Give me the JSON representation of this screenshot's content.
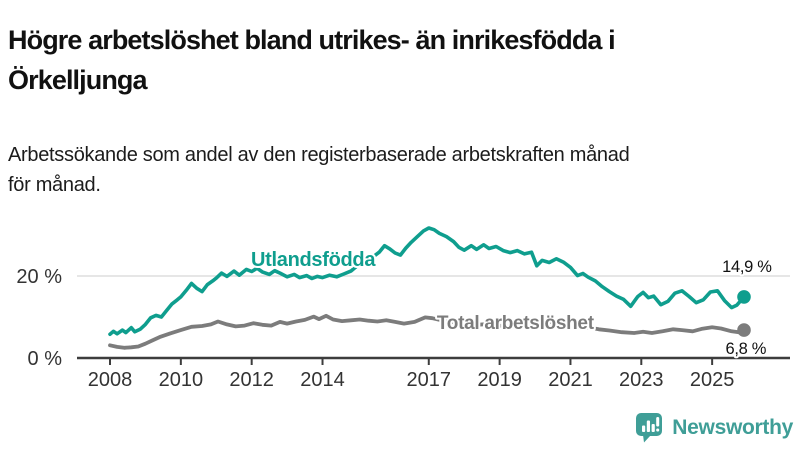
{
  "header": {
    "title_lines": [
      "Högre arbetslöshet bland utrikes- än inrikesfödda i",
      "Örkelljunga"
    ],
    "subtitle_lines": [
      "Arbetssökande som andel av den registerbaserade arbetskraften månad",
      "för månad."
    ]
  },
  "footer": {
    "brand": "Newsworthy",
    "logo_icon": "bar-chart-speech-bubble-icon"
  },
  "colors": {
    "accent_teal": "#0F9E8E",
    "line_gray": "#7C7C7C",
    "text_dark": "#111111",
    "axis_text": "#333333",
    "axis_line": "#3D3D3D",
    "gridline": "#D8D8D8",
    "logo_teal": "#3F9E97",
    "background": "#FFFFFF"
  },
  "chart_data": {
    "type": "line",
    "title": "",
    "xlabel": "",
    "ylabel": "",
    "y_unit": "%",
    "x_unit": "year (monthly observations)",
    "ylim": [
      0,
      36
    ],
    "xlim": [
      2007.9,
      2026.2
    ],
    "grid": "horizontal gridline at 20 % only",
    "legend_position": "labels drawn on lines",
    "x_ticks": [
      2008,
      2010,
      2012,
      2014,
      2017,
      2019,
      2021,
      2023,
      2025
    ],
    "y_ticks": [
      {
        "value": 0,
        "label": "0 %",
        "gridline": false
      },
      {
        "value": 20,
        "label": "20 %",
        "gridline": true
      }
    ],
    "series": [
      {
        "name": "Utlandsfödda",
        "color": "#0F9E8E",
        "stroke_width": 3.6,
        "end_value": 14.9,
        "end_label": "14,9 %",
        "points": [
          [
            2008.0,
            5.8
          ],
          [
            2008.1,
            6.5
          ],
          [
            2008.2,
            5.9
          ],
          [
            2008.35,
            6.8
          ],
          [
            2008.45,
            6.2
          ],
          [
            2008.6,
            7.4
          ],
          [
            2008.7,
            6.4
          ],
          [
            2008.85,
            7.0
          ],
          [
            2009.0,
            8.2
          ],
          [
            2009.15,
            9.8
          ],
          [
            2009.3,
            10.4
          ],
          [
            2009.45,
            10.0
          ],
          [
            2009.6,
            11.6
          ],
          [
            2009.75,
            13.2
          ],
          [
            2009.9,
            14.2
          ],
          [
            2010.0,
            14.9
          ],
          [
            2010.15,
            16.5
          ],
          [
            2010.3,
            18.2
          ],
          [
            2010.45,
            17.0
          ],
          [
            2010.6,
            16.2
          ],
          [
            2010.75,
            17.9
          ],
          [
            2010.9,
            18.8
          ],
          [
            2011.0,
            19.5
          ],
          [
            2011.15,
            20.7
          ],
          [
            2011.3,
            19.9
          ],
          [
            2011.5,
            21.2
          ],
          [
            2011.65,
            20.2
          ],
          [
            2011.85,
            21.6
          ],
          [
            2012.0,
            21.1
          ],
          [
            2012.15,
            21.9
          ],
          [
            2012.3,
            21.0
          ],
          [
            2012.5,
            20.4
          ],
          [
            2012.65,
            21.3
          ],
          [
            2012.8,
            20.7
          ],
          [
            2013.0,
            19.8
          ],
          [
            2013.2,
            20.4
          ],
          [
            2013.35,
            19.6
          ],
          [
            2013.55,
            20.1
          ],
          [
            2013.7,
            19.4
          ],
          [
            2013.85,
            19.9
          ],
          [
            2014.0,
            19.6
          ],
          [
            2014.2,
            20.2
          ],
          [
            2014.4,
            19.8
          ],
          [
            2014.6,
            20.5
          ],
          [
            2014.8,
            21.2
          ],
          [
            2015.0,
            22.6
          ],
          [
            2015.2,
            23.4
          ],
          [
            2015.4,
            24.5
          ],
          [
            2015.6,
            25.8
          ],
          [
            2015.75,
            27.4
          ],
          [
            2015.9,
            26.6
          ],
          [
            2016.05,
            25.6
          ],
          [
            2016.2,
            25.1
          ],
          [
            2016.35,
            26.8
          ],
          [
            2016.5,
            28.2
          ],
          [
            2016.7,
            29.8
          ],
          [
            2016.85,
            31.0
          ],
          [
            2017.0,
            31.7
          ],
          [
            2017.15,
            31.3
          ],
          [
            2017.3,
            30.4
          ],
          [
            2017.5,
            29.6
          ],
          [
            2017.7,
            28.4
          ],
          [
            2017.85,
            27.0
          ],
          [
            2018.0,
            26.3
          ],
          [
            2018.2,
            27.4
          ],
          [
            2018.35,
            26.5
          ],
          [
            2018.55,
            27.6
          ],
          [
            2018.7,
            26.7
          ],
          [
            2018.9,
            27.2
          ],
          [
            2019.1,
            26.2
          ],
          [
            2019.3,
            25.7
          ],
          [
            2019.5,
            26.2
          ],
          [
            2019.7,
            25.4
          ],
          [
            2019.9,
            25.8
          ],
          [
            2020.05,
            22.5
          ],
          [
            2020.2,
            23.8
          ],
          [
            2020.4,
            23.3
          ],
          [
            2020.6,
            24.2
          ],
          [
            2020.8,
            23.4
          ],
          [
            2021.0,
            22.1
          ],
          [
            2021.2,
            20.1
          ],
          [
            2021.35,
            20.6
          ],
          [
            2021.5,
            19.7
          ],
          [
            2021.7,
            18.8
          ],
          [
            2021.9,
            17.4
          ],
          [
            2022.1,
            16.2
          ],
          [
            2022.3,
            15.1
          ],
          [
            2022.5,
            14.3
          ],
          [
            2022.7,
            12.6
          ],
          [
            2022.9,
            15.0
          ],
          [
            2023.05,
            16.0
          ],
          [
            2023.2,
            14.7
          ],
          [
            2023.35,
            15.1
          ],
          [
            2023.55,
            13.0
          ],
          [
            2023.75,
            13.8
          ],
          [
            2023.95,
            15.8
          ],
          [
            2024.15,
            16.4
          ],
          [
            2024.35,
            15.0
          ],
          [
            2024.55,
            13.5
          ],
          [
            2024.75,
            14.2
          ],
          [
            2024.95,
            16.1
          ],
          [
            2025.15,
            16.4
          ],
          [
            2025.35,
            14.0
          ],
          [
            2025.55,
            12.3
          ],
          [
            2025.7,
            12.9
          ],
          [
            2025.9,
            14.9
          ]
        ]
      },
      {
        "name": "Total arbetslöshet",
        "color": "#7C7C7C",
        "stroke_width": 3.8,
        "end_value": 6.8,
        "end_label": "6,8 %",
        "points": [
          [
            2008.0,
            3.1
          ],
          [
            2008.2,
            2.7
          ],
          [
            2008.4,
            2.5
          ],
          [
            2008.6,
            2.6
          ],
          [
            2008.8,
            2.8
          ],
          [
            2009.0,
            3.5
          ],
          [
            2009.2,
            4.3
          ],
          [
            2009.4,
            5.1
          ],
          [
            2009.7,
            6.0
          ],
          [
            2010.0,
            6.8
          ],
          [
            2010.3,
            7.6
          ],
          [
            2010.6,
            7.8
          ],
          [
            2010.85,
            8.2
          ],
          [
            2011.05,
            8.9
          ],
          [
            2011.3,
            8.2
          ],
          [
            2011.55,
            7.7
          ],
          [
            2011.8,
            7.9
          ],
          [
            2012.05,
            8.5
          ],
          [
            2012.3,
            8.1
          ],
          [
            2012.55,
            7.9
          ],
          [
            2012.8,
            8.8
          ],
          [
            2013.0,
            8.4
          ],
          [
            2013.25,
            8.9
          ],
          [
            2013.5,
            9.3
          ],
          [
            2013.75,
            10.1
          ],
          [
            2013.9,
            9.5
          ],
          [
            2014.1,
            10.3
          ],
          [
            2014.3,
            9.4
          ],
          [
            2014.55,
            9.0
          ],
          [
            2014.8,
            9.2
          ],
          [
            2015.05,
            9.4
          ],
          [
            2015.3,
            9.1
          ],
          [
            2015.55,
            8.9
          ],
          [
            2015.8,
            9.2
          ],
          [
            2016.05,
            8.8
          ],
          [
            2016.3,
            8.4
          ],
          [
            2016.6,
            8.8
          ],
          [
            2016.9,
            9.9
          ],
          [
            2017.1,
            9.7
          ],
          [
            2017.4,
            9.1
          ],
          [
            2017.7,
            8.7
          ],
          [
            2018.0,
            8.3
          ],
          [
            2018.35,
            8.1
          ],
          [
            2018.7,
            8.3
          ],
          [
            2019.0,
            7.9
          ],
          [
            2019.4,
            7.6
          ],
          [
            2019.8,
            7.7
          ],
          [
            2020.1,
            8.1
          ],
          [
            2020.4,
            8.8
          ],
          [
            2020.7,
            8.6
          ],
          [
            2021.0,
            8.2
          ],
          [
            2021.4,
            7.6
          ],
          [
            2021.8,
            7.0
          ],
          [
            2022.1,
            6.7
          ],
          [
            2022.45,
            6.3
          ],
          [
            2022.8,
            6.1
          ],
          [
            2023.05,
            6.4
          ],
          [
            2023.3,
            6.1
          ],
          [
            2023.6,
            6.5
          ],
          [
            2023.9,
            7.0
          ],
          [
            2024.15,
            6.8
          ],
          [
            2024.45,
            6.5
          ],
          [
            2024.7,
            7.1
          ],
          [
            2025.0,
            7.5
          ],
          [
            2025.25,
            7.2
          ],
          [
            2025.55,
            6.5
          ],
          [
            2025.75,
            6.3
          ],
          [
            2025.9,
            6.8
          ]
        ]
      }
    ],
    "annotations": [
      {
        "text": "Utlandsfödda",
        "x": 2011.98,
        "y": 22.4,
        "anchor": "start",
        "size": 20,
        "weight": "bold",
        "color": "#0F9E8E",
        "halo": true
      },
      {
        "text": "Total arbetslöshet",
        "x": 2017.23,
        "y": 7.1,
        "anchor": "start",
        "size": 19,
        "weight": "bold",
        "color": "#7C7C7C",
        "halo": true
      },
      {
        "text": "14,9 %",
        "x": 2025.98,
        "y": 21.0,
        "anchor": "middle",
        "size": 16.5,
        "weight": "normal",
        "color": "#111111",
        "halo": true
      },
      {
        "text": "6,8 %",
        "x": 2025.95,
        "y": 1.0,
        "anchor": "middle",
        "size": 16.5,
        "weight": "normal",
        "color": "#111111",
        "halo": true
      }
    ]
  }
}
